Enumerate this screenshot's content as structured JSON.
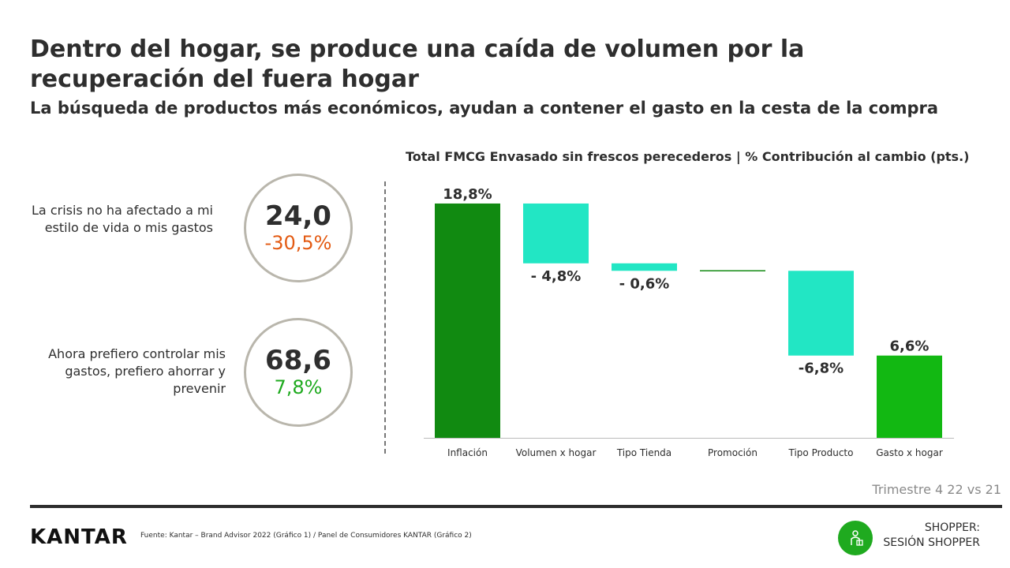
{
  "header": {
    "title": "Dentro del hogar, se produce una caída de volumen por la recuperación del fuera hogar",
    "subtitle": "La búsqueda de productos más económicos, ayudan a contener el gasto en la cesta de la compra"
  },
  "stats": [
    {
      "label": "La crisis no ha afectado a mi estilo de vida o mis gastos",
      "value": "24,0",
      "change": "-30,5%",
      "change_color": "#e35a12"
    },
    {
      "label": "Ahora prefiero controlar mis gastos, prefiero ahorrar y prevenir",
      "value": "68,6",
      "change": "7,8%",
      "change_color": "#1faa1f"
    }
  ],
  "chart_title": "Total FMCG Envasado sin frescos perecederos |  % Contribución al cambio (pts.)",
  "chart_data": {
    "type": "waterfall",
    "categories": [
      "Inflación",
      "Volumen x hogar",
      "Tipo Tienda",
      "Promoción",
      "Tipo Producto",
      "Gasto x hogar"
    ],
    "values": [
      18.8,
      -4.8,
      -0.6,
      0.0,
      -6.8,
      6.6
    ],
    "labels": [
      "18,8%",
      "- 4,8%",
      "- 0,6%",
      "",
      "-6,8%",
      "6,6%"
    ],
    "kinds": [
      "total",
      "delta",
      "delta",
      "delta",
      "delta",
      "total"
    ],
    "colors": {
      "total_start": "#118a11",
      "delta": "#22e6c4",
      "zero_line": "#118a11",
      "total_end": "#12b812"
    }
  },
  "period": "Trimestre 4 22 vs 21",
  "footer": {
    "logo": "KANTAR",
    "source": "Fuente: Kantar – Brand Advisor 2022 (Gráfico 1) / Panel de Consumidores KANTAR (Gráfico 2)",
    "session_line1": "SHOPPER:",
    "session_line2": "SESIÓN SHOPPER",
    "badge_icon": "shopper-icon"
  }
}
